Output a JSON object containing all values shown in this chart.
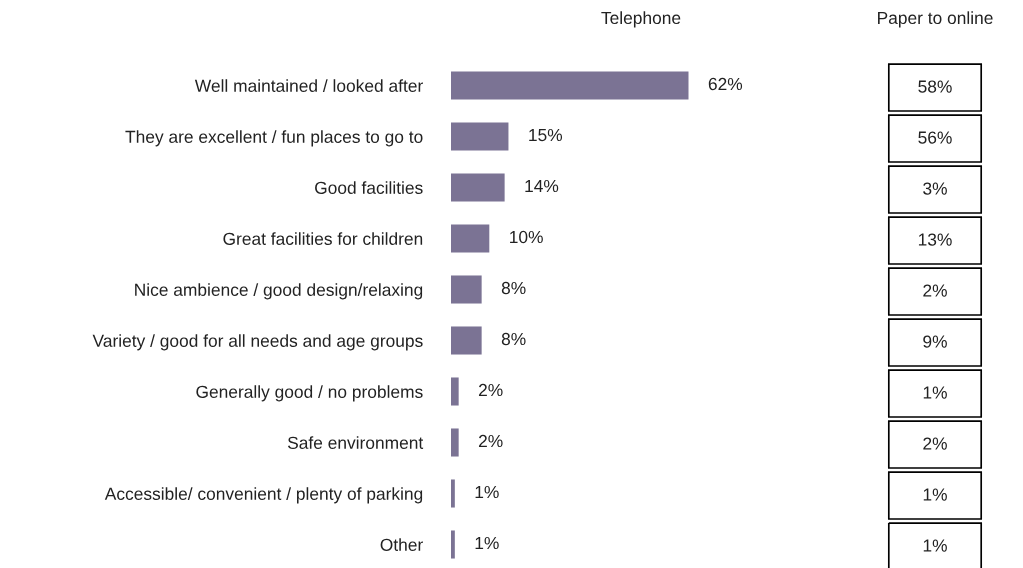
{
  "chart_data": [
    {
      "type": "bar",
      "orientation": "horizontal",
      "title": "Telephone",
      "categories": [
        "Well maintained / looked after",
        "They are excellent / fun places to go to",
        "Good facilities",
        "Great facilities for children",
        "Nice ambience / good design/relaxing",
        "Variety / good for all needs and age groups",
        "Generally good / no problems",
        "Safe environment",
        "Accessible/ convenient / plenty of parking",
        "Other"
      ],
      "values": [
        62,
        15,
        14,
        10,
        8,
        8,
        2,
        2,
        1,
        1
      ],
      "value_labels": [
        "62%",
        "15%",
        "14%",
        "10%",
        "8%",
        "8%",
        "2%",
        "2%",
        "1%",
        "1%"
      ],
      "color": "#7b7394",
      "grid": false,
      "legend": false
    },
    {
      "type": "other",
      "title": "Paper to online",
      "annotations": [
        "58%",
        "56%",
        "3%",
        "13%",
        "2%",
        "9%",
        "1%",
        "2%",
        "1%",
        "1%"
      ]
    }
  ]
}
